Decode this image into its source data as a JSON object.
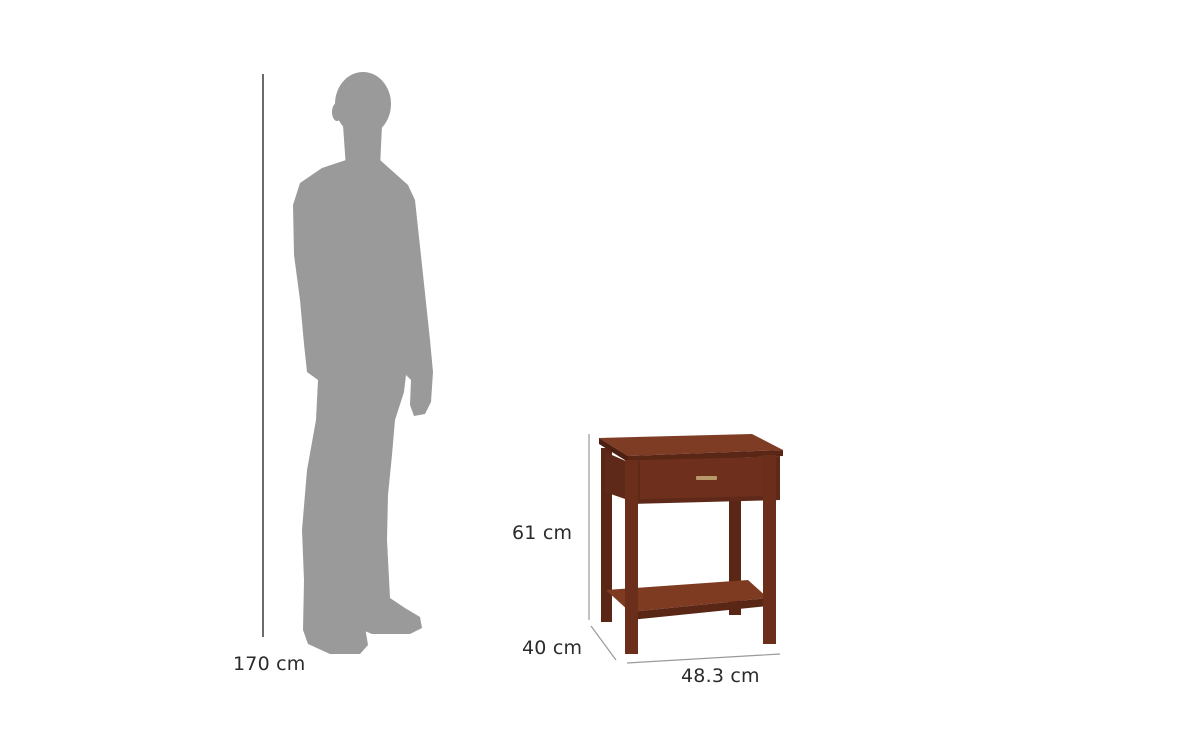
{
  "dimensions": {
    "person_height": "170 cm",
    "table_height": "61 cm",
    "table_depth": "40 cm",
    "table_width": "48.3 cm"
  },
  "colors": {
    "background": "#ffffff",
    "silhouette": "#9a9a9a",
    "dimension_line": "#3a3a3a",
    "wood_top": "#7a3a22",
    "wood_front": "#6a2e1a",
    "wood_dark": "#4e2012",
    "handle": "#b89a6a"
  }
}
